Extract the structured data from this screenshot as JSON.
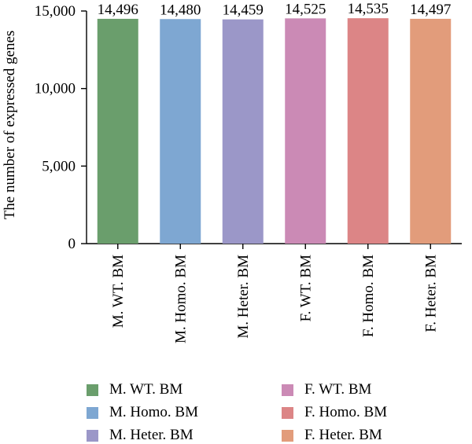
{
  "chart_data": {
    "type": "bar",
    "categories": [
      "M. WT. BM",
      "M. Homo. BM",
      "M. Heter. BM",
      "F. WT. BM",
      "F. Homo. BM",
      "F. Heter. BM"
    ],
    "values": [
      14496,
      14480,
      14459,
      14525,
      14535,
      14497
    ],
    "data_labels": [
      "14,496",
      "14,480",
      "14,459",
      "14,525",
      "14,535",
      "14,497"
    ],
    "colors": [
      "#6a9e6c",
      "#7ea7d2",
      "#9b97c8",
      "#cb8ab5",
      "#dc8586",
      "#e29c7b"
    ],
    "ylabel": "The number of expressed genes",
    "xlabel": "",
    "ylim": [
      0,
      15000
    ],
    "yticks": [
      0,
      5000,
      10000,
      15000
    ],
    "ytick_labels": [
      "0",
      "5,000",
      "10,000",
      "15,000"
    ],
    "grid": false,
    "legend": {
      "position": "bottom",
      "entries": [
        "M. WT. BM",
        "F. WT. BM",
        "M. Homo. BM",
        "F. Homo. BM",
        "M. Heter. BM",
        "F. Heter. BM"
      ],
      "colors": [
        "#6a9e6c",
        "#cb8ab5",
        "#7ea7d2",
        "#dc8586",
        "#9b97c8",
        "#e29c7b"
      ]
    }
  }
}
